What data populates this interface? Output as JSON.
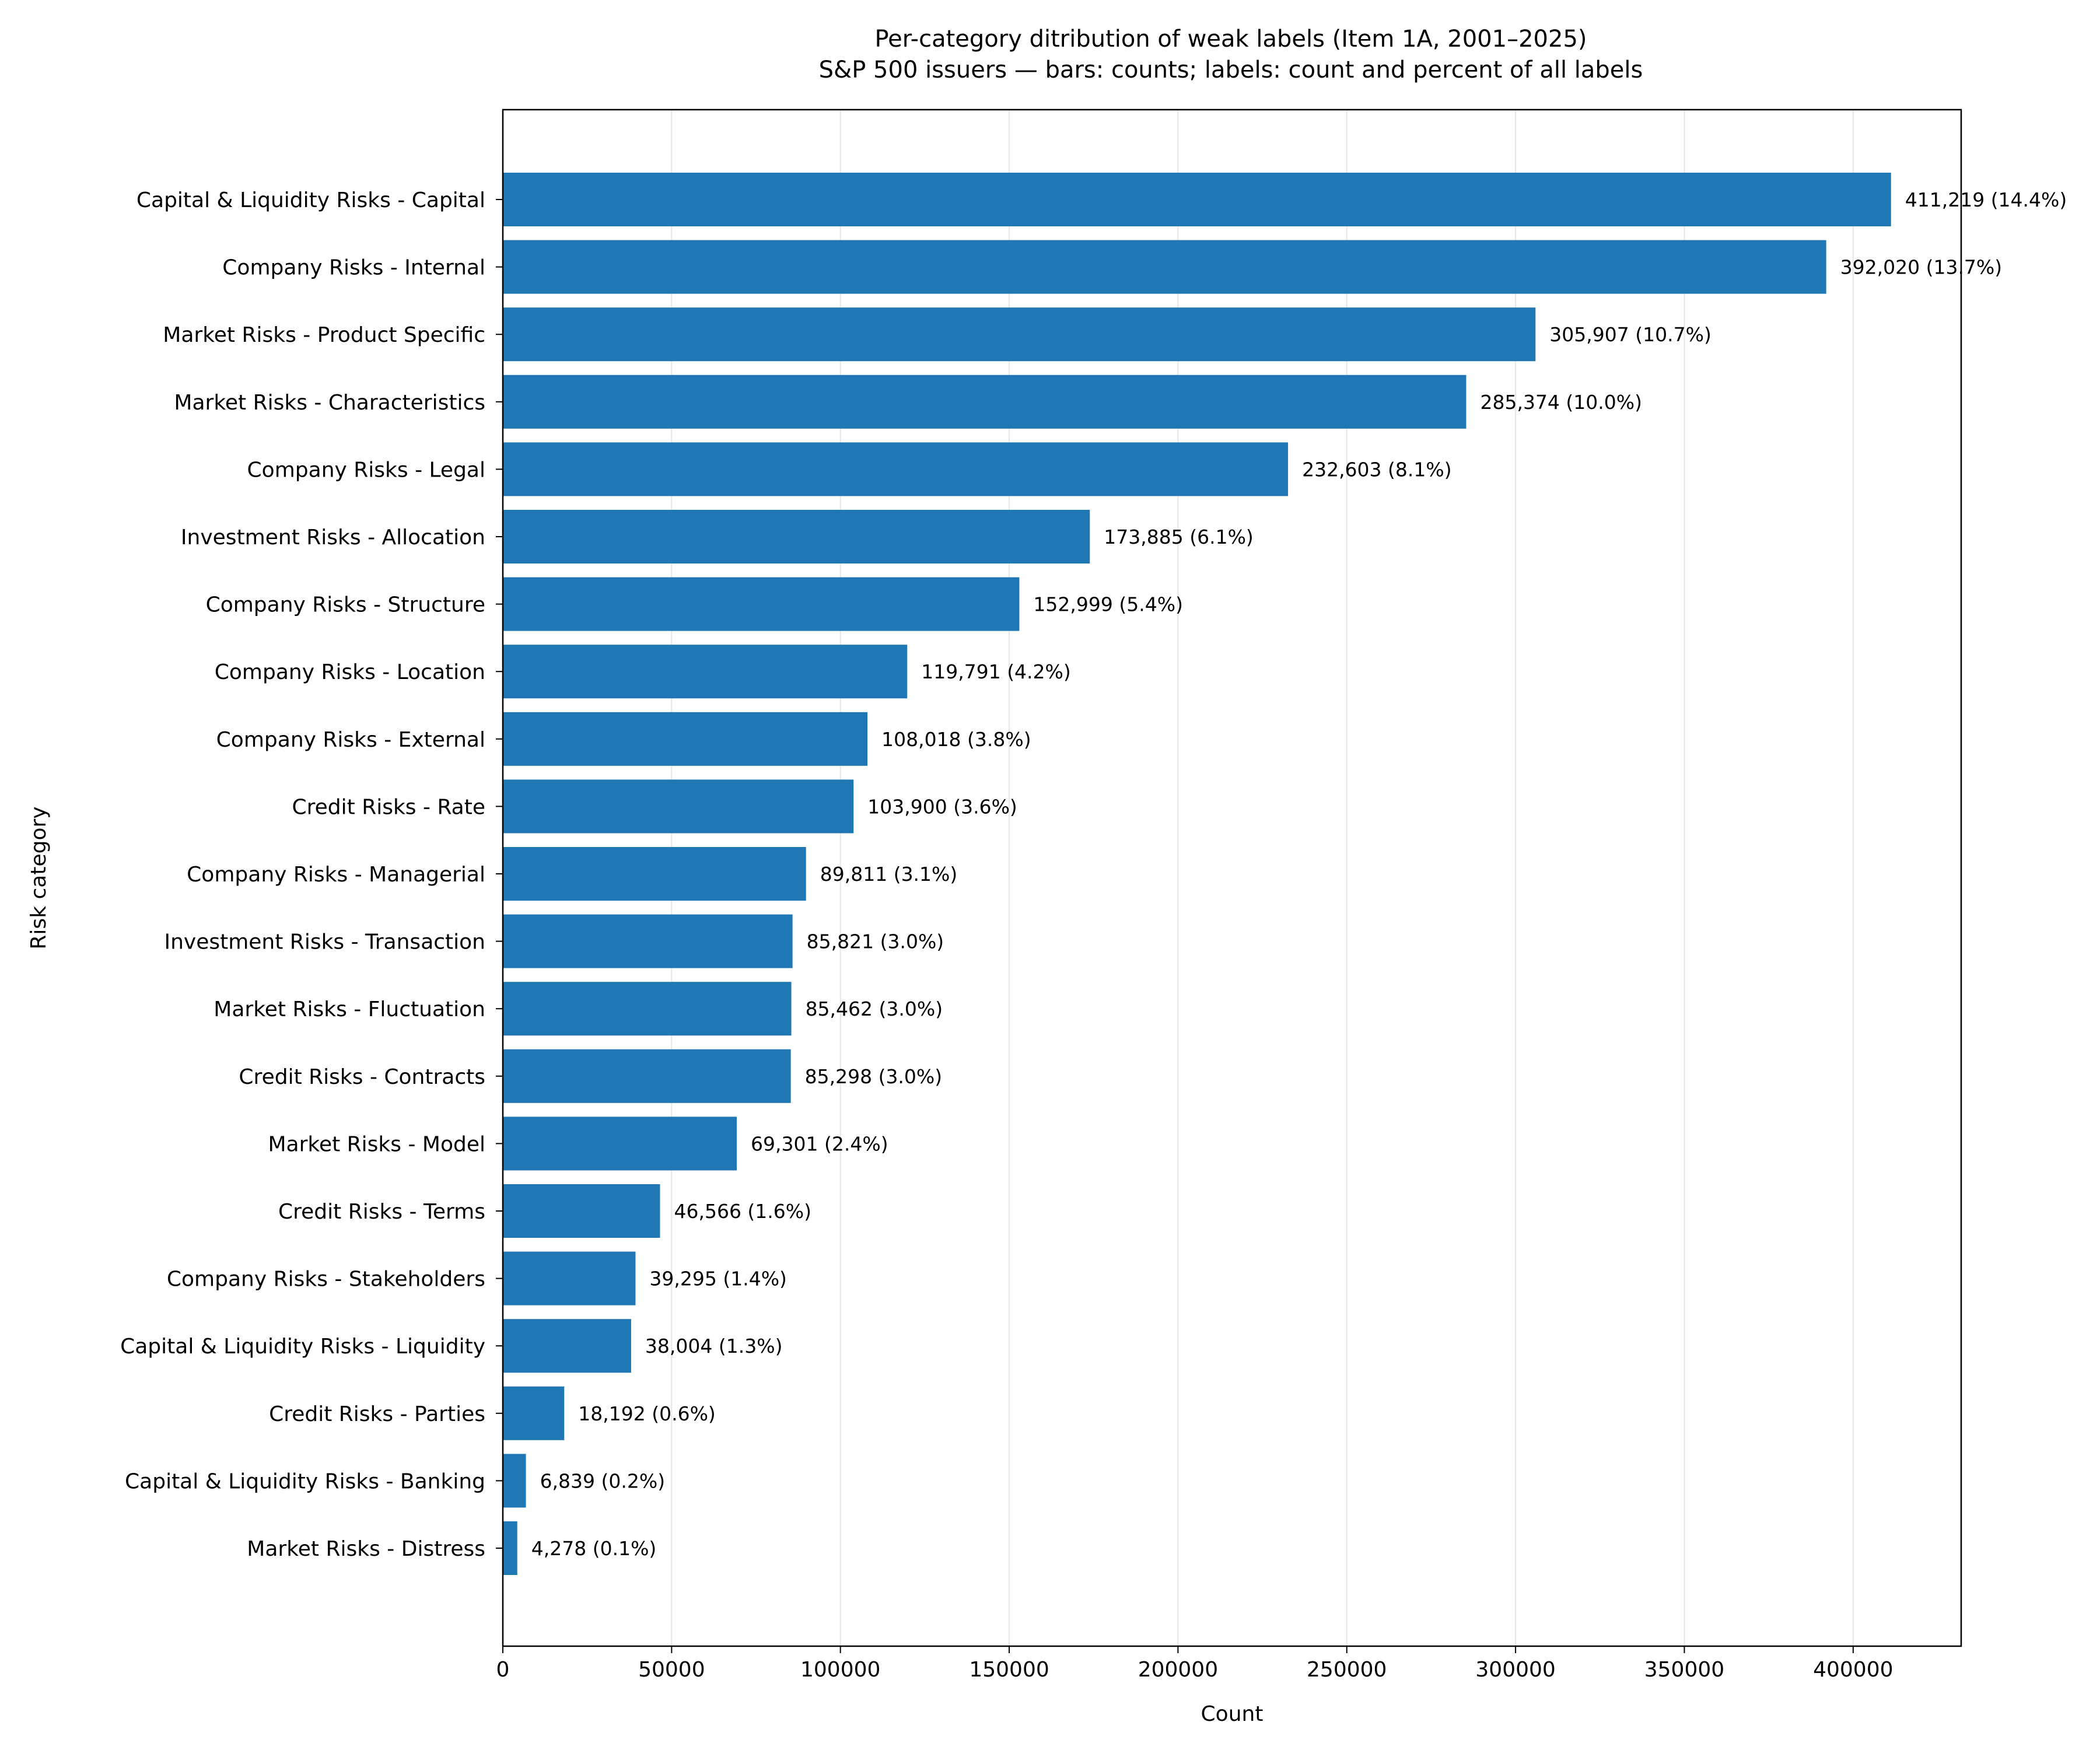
{
  "chart_data": {
    "type": "bar",
    "orientation": "horizontal",
    "title": "Per-category ditribution of weak labels (Item 1A, 2001–2025)",
    "subtitle": "S&P 500 issuers — bars: counts; labels: count and percent of all labels",
    "xlabel": "Count",
    "ylabel": "Risk category",
    "xlim": [
      0,
      432000
    ],
    "xticks": [
      0,
      50000,
      100000,
      150000,
      200000,
      250000,
      300000,
      350000,
      400000
    ],
    "xtick_labels": [
      "0",
      "50000",
      "100000",
      "150000",
      "200000",
      "250000",
      "300000",
      "350000",
      "400000"
    ],
    "grid": "vertical",
    "bar_color": "#1f77b4",
    "categories": [
      "Capital & Liquidity Risks - Capital",
      "Company Risks - Internal",
      "Market Risks - Product Specific",
      "Market Risks - Characteristics",
      "Company Risks - Legal",
      "Investment Risks - Allocation",
      "Company Risks - Structure",
      "Company Risks - Location",
      "Company Risks - External",
      "Credit Risks - Rate",
      "Company Risks - Managerial",
      "Investment Risks - Transaction",
      "Market Risks - Fluctuation",
      "Credit Risks - Contracts",
      "Market Risks - Model",
      "Credit Risks - Terms",
      "Company Risks - Stakeholders",
      "Capital & Liquidity Risks - Liquidity",
      "Credit Risks - Parties",
      "Capital & Liquidity Risks - Banking",
      "Market Risks - Distress"
    ],
    "values": [
      411219,
      392020,
      305907,
      285374,
      232603,
      173885,
      152999,
      119791,
      108018,
      103900,
      89811,
      85821,
      85462,
      85298,
      69301,
      46566,
      39295,
      38004,
      18192,
      6839,
      4278
    ],
    "data_labels": [
      "411,219 (14.4%)",
      "392,020 (13.7%)",
      "305,907 (10.7%)",
      "285,374 (10.0%)",
      "232,603 (8.1%)",
      "173,885 (6.1%)",
      "152,999 (5.4%)",
      "119,791 (4.2%)",
      "108,018 (3.8%)",
      "103,900 (3.6%)",
      "89,811 (3.1%)",
      "85,821 (3.0%)",
      "85,462 (3.0%)",
      "85,298 (3.0%)",
      "69,301 (2.4%)",
      "46,566 (1.6%)",
      "39,295 (1.4%)",
      "38,004 (1.3%)",
      "18,192 (0.6%)",
      "6,839 (0.2%)",
      "4,278 (0.1%)"
    ]
  }
}
